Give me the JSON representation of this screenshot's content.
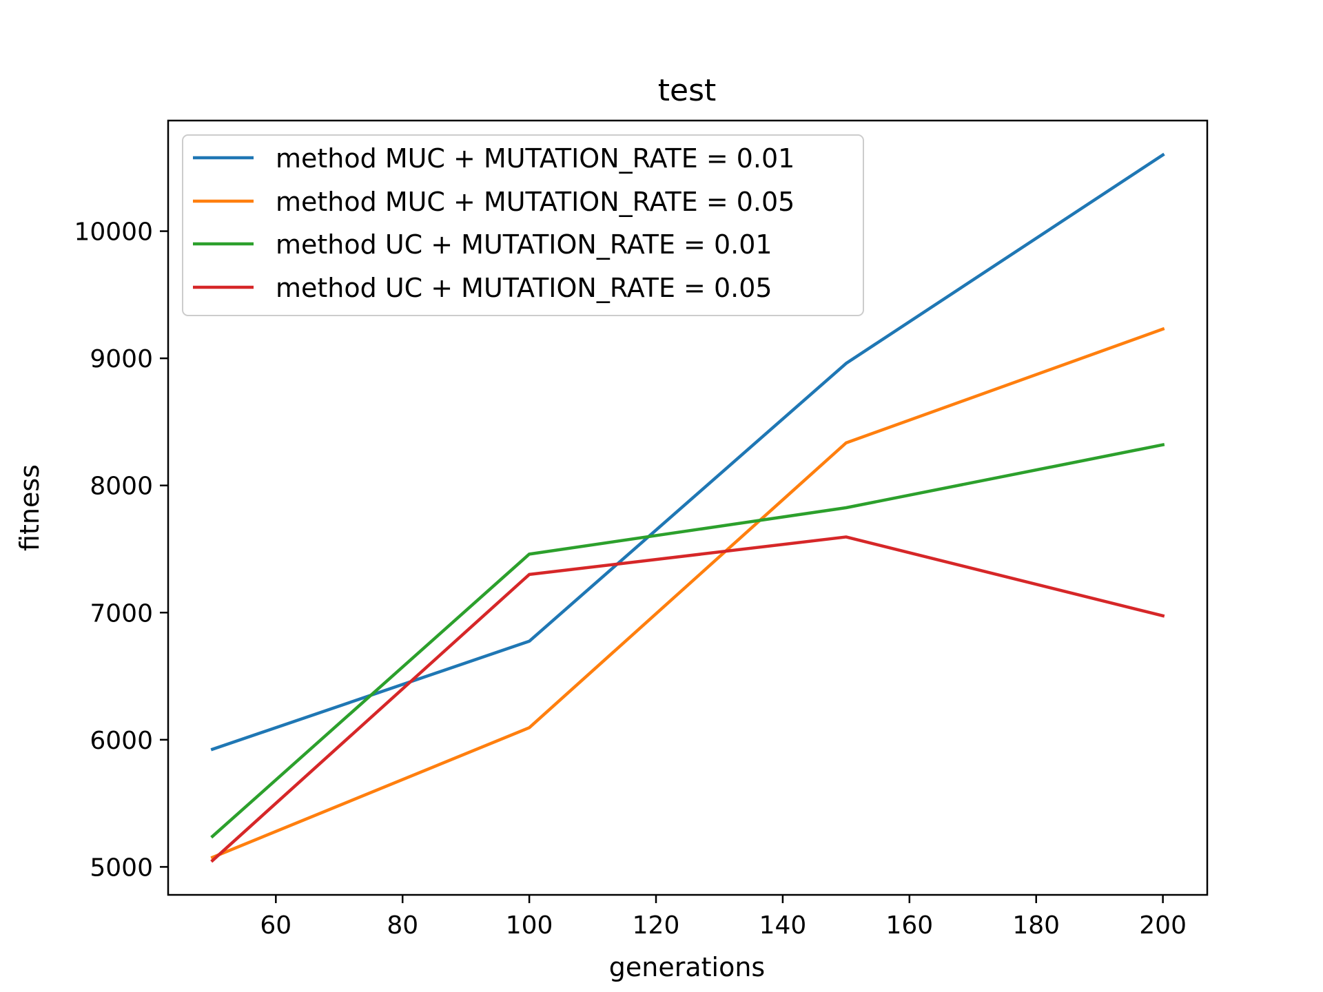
{
  "chart_data": {
    "type": "line",
    "title": "test",
    "xlabel": "generations",
    "ylabel": "fitness",
    "x": [
      50,
      100,
      150,
      200
    ],
    "xlim": [
      43,
      207
    ],
    "ylim": [
      4780,
      10870
    ],
    "xticks": [
      "60",
      "80",
      "100",
      "120",
      "140",
      "160",
      "180",
      "200"
    ],
    "yticks": [
      "5000",
      "6000",
      "7000",
      "8000",
      "9000",
      "10000"
    ],
    "grid": false,
    "legend_position": "upper-left",
    "series": [
      {
        "name": "method MUC + MUTATION_RATE = 0.01",
        "color": "#1f77b4",
        "values": [
          5925,
          6775,
          8960,
          10600
        ]
      },
      {
        "name": "method MUC + MUTATION_RATE = 0.05",
        "color": "#ff7f0e",
        "values": [
          5075,
          6095,
          8335,
          9230
        ]
      },
      {
        "name": "method UC + MUTATION_RATE = 0.01",
        "color": "#2ca02c",
        "values": [
          5240,
          7460,
          7825,
          8320
        ]
      },
      {
        "name": "method UC + MUTATION_RATE = 0.05",
        "color": "#d62728",
        "values": [
          5050,
          7300,
          7595,
          6975
        ]
      }
    ]
  }
}
